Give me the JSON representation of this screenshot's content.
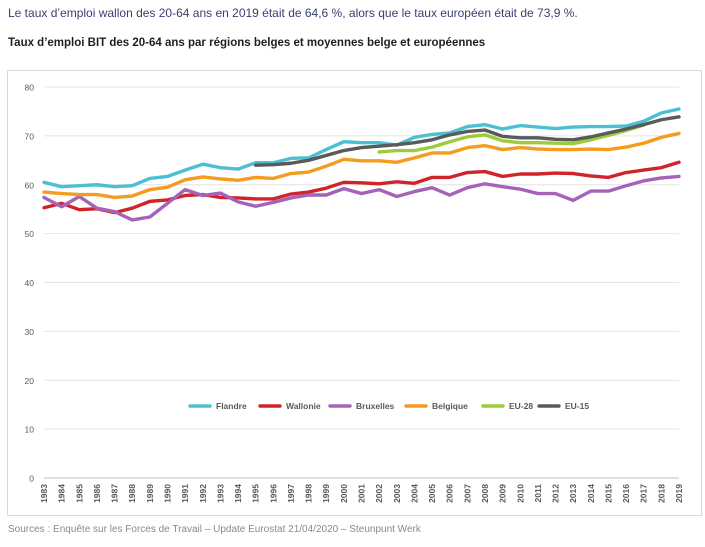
{
  "header": {
    "intro": "Le taux d’emploi wallon des 20-64 ans en 2019 était de 64,6 %, alors que le taux européen était de 73,9 %.",
    "title": "Taux d’emploi BIT des 20-64 ans par régions belges et moyennes belge et européennes"
  },
  "footer": {
    "source": "Sources : Enquête sur les Forces de Travail – Update Eurostat 21/04/2020 – Steunpunt Werk"
  },
  "chart_data": {
    "type": "line",
    "title": "Taux d’emploi BIT des 20-64 ans par régions belges et moyennes belge et européennes",
    "xlabel": "",
    "ylabel": "",
    "ylim": [
      0,
      80
    ],
    "yticks": [
      0,
      10,
      20,
      30,
      40,
      50,
      60,
      70,
      80
    ],
    "grid": true,
    "legend_position": "inside-bottom",
    "x": [
      "1983",
      "1984",
      "1985",
      "1986",
      "1987",
      "1988",
      "1989",
      "1990",
      "1991",
      "1992",
      "1993",
      "1994",
      "1995",
      "1996",
      "1997",
      "1998",
      "1999",
      "2000",
      "2001",
      "2002",
      "2003",
      "2004",
      "2005",
      "2006",
      "2007",
      "2008",
      "2009",
      "2010",
      "2011",
      "2012",
      "2013",
      "2014",
      "2015",
      "2016",
      "2017",
      "2018",
      "2019"
    ],
    "series": [
      {
        "name": "Flandre",
        "color": "#4bc0d0",
        "values": [
          60.5,
          59.6,
          59.8,
          60.0,
          59.6,
          59.8,
          61.3,
          61.7,
          63.0,
          64.2,
          63.5,
          63.2,
          64.5,
          64.5,
          65.4,
          65.5,
          67.2,
          68.8,
          68.6,
          68.6,
          68.1,
          69.7,
          70.3,
          70.6,
          71.9,
          72.3,
          71.4,
          72.1,
          71.8,
          71.5,
          71.8,
          71.9,
          71.9,
          72.0,
          73.0,
          74.7,
          75.5
        ]
      },
      {
        "name": "Wallonie",
        "color": "#d0242b",
        "values": [
          55.3,
          56.2,
          54.9,
          55.1,
          54.3,
          55.2,
          56.6,
          56.9,
          57.8,
          58.0,
          57.4,
          57.3,
          57.1,
          57.1,
          58.1,
          58.5,
          59.3,
          60.5,
          60.4,
          60.2,
          60.6,
          60.3,
          61.5,
          61.5,
          62.5,
          62.7,
          61.7,
          62.2,
          62.2,
          62.4,
          62.3,
          61.8,
          61.5,
          62.5,
          63.0,
          63.5,
          64.6
        ]
      },
      {
        "name": "Bruxelles",
        "color": "#a463b8",
        "values": [
          57.4,
          55.5,
          57.6,
          55.2,
          54.5,
          52.8,
          53.4,
          56.2,
          59.0,
          57.8,
          58.3,
          56.5,
          55.6,
          56.4,
          57.3,
          57.9,
          57.9,
          59.2,
          58.2,
          59.0,
          57.6,
          58.6,
          59.4,
          57.9,
          59.4,
          60.2,
          59.6,
          59.1,
          58.2,
          58.2,
          56.8,
          58.7,
          58.7,
          59.8,
          60.8,
          61.4,
          61.7
        ]
      },
      {
        "name": "Belgique",
        "color": "#f39c1f",
        "values": [
          58.5,
          58.2,
          58.0,
          58.0,
          57.4,
          57.7,
          59.0,
          59.5,
          61.0,
          61.6,
          61.2,
          60.9,
          61.5,
          61.3,
          62.3,
          62.6,
          63.8,
          65.2,
          64.9,
          64.9,
          64.6,
          65.5,
          66.5,
          66.5,
          67.6,
          68.0,
          67.2,
          67.6,
          67.3,
          67.2,
          67.2,
          67.3,
          67.2,
          67.7,
          68.5,
          69.7,
          70.5
        ]
      },
      {
        "name": "EU-28",
        "color": "#9ccc3d",
        "values": [
          null,
          null,
          null,
          null,
          null,
          null,
          null,
          null,
          null,
          null,
          null,
          null,
          null,
          null,
          null,
          null,
          null,
          null,
          null,
          66.7,
          67.0,
          67.0,
          67.7,
          68.8,
          69.8,
          70.2,
          69.0,
          68.6,
          68.6,
          68.5,
          68.4,
          69.2,
          70.1,
          71.1,
          72.2,
          null,
          null
        ]
      },
      {
        "name": "EU-15",
        "color": "#5a5a5a",
        "values": [
          null,
          null,
          null,
          null,
          null,
          null,
          null,
          null,
          null,
          null,
          null,
          null,
          64.0,
          64.1,
          64.4,
          65.0,
          66.0,
          67.0,
          67.6,
          67.9,
          68.2,
          68.6,
          69.2,
          70.2,
          70.9,
          71.2,
          69.9,
          69.6,
          69.6,
          69.3,
          69.2,
          69.8,
          70.6,
          71.4,
          72.3,
          73.3,
          73.9
        ]
      }
    ]
  }
}
